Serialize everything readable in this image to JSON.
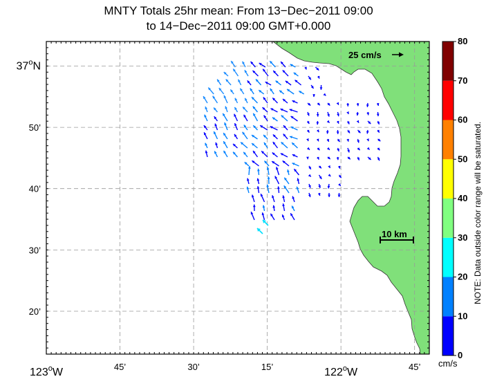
{
  "title": {
    "line1": "MNTY Totals 25hr mean: From 13−Dec−2011 09:00",
    "line2": "to 14−Dec−2011 09:00 GMT+0.000"
  },
  "map": {
    "lat_labels": [
      {
        "text": "37",
        "deg": "o",
        "hemi": "N",
        "lat": 37.0
      },
      {
        "text": "50’",
        "lat": 36.8333
      },
      {
        "text": "40’",
        "lat": 36.6667
      },
      {
        "text": "30’",
        "lat": 36.5
      },
      {
        "text": "20’",
        "lat": 36.3333
      }
    ],
    "lon_labels": [
      {
        "text": "123",
        "deg": "o",
        "hemi": "W",
        "lon": -123.0
      },
      {
        "text": "45’",
        "lon": -122.75
      },
      {
        "text": "30’",
        "lon": -122.5
      },
      {
        "text": "15’",
        "lon": -122.25
      },
      {
        "text": "122",
        "deg": "o",
        "hemi": "W",
        "lon": -122.0
      },
      {
        "text": "45’",
        "lon": -121.75
      }
    ],
    "lat_range": [
      36.2167,
      37.0667
    ],
    "lon_range": [
      -123.0,
      -121.7
    ],
    "land_color": "#80e07a",
    "arrow_scale_label": "25 cm/s",
    "distance_scale_label": "10 km"
  },
  "colorbar": {
    "ticks": [
      "0",
      "10",
      "20",
      "30",
      "40",
      "50",
      "60",
      "70",
      "80"
    ],
    "unit": "cm/s",
    "colors": [
      "#0000ff",
      "#0080ff",
      "#00ffff",
      "#80ff80",
      "#ffff00",
      "#ff8000",
      "#ff0000",
      "#800000"
    ],
    "note": "NOTE: Data outside color range will be saturated."
  }
}
